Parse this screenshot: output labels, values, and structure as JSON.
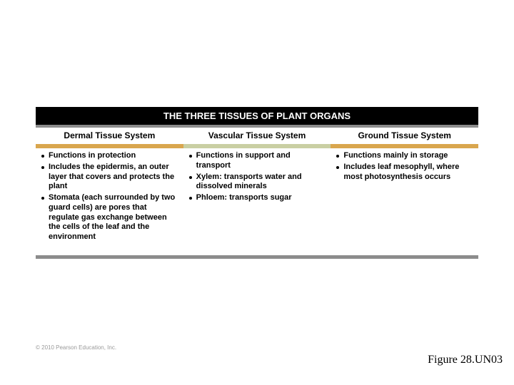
{
  "title": "THE THREE TISSUES OF PLANT ORGANS",
  "columns": [
    {
      "header": "Dermal Tissue System",
      "band_color": "#d9a64e",
      "items": [
        "Functions in protection",
        "Includes the epidermis, an outer layer that covers and protects the plant",
        "Stomata (each surrounded by two guard cells) are pores that regulate gas exchange between the cells of the leaf and the environment"
      ]
    },
    {
      "header": "Vascular Tissue System",
      "band_color": "#c9cfa3",
      "items": [
        "Functions in support and transport",
        "Xylem: transports water and dissolved minerals",
        "Phloem: transports sugar"
      ]
    },
    {
      "header": "Ground Tissue System",
      "band_color": "#d9a64e",
      "items": [
        "Functions mainly in storage",
        "Includes leaf mesophyll, where most photosynthesis occurs"
      ]
    }
  ],
  "copyright": "© 2010 Pearson Education, Inc.",
  "figure_label": "Figure 28.UN03",
  "grey": "#8c8c8c"
}
